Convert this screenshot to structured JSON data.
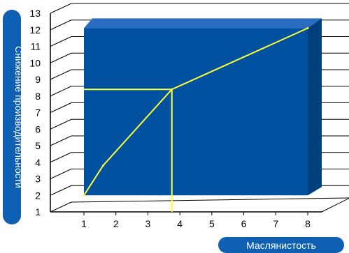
{
  "chart_data": {
    "type": "line",
    "xlabel": "Маслянистость",
    "ylabel": "Снижение производительности",
    "xlim": [
      1,
      8
    ],
    "ylim": [
      1,
      13
    ],
    "x_ticks": [
      "1",
      "2",
      "3",
      "4",
      "5",
      "6",
      "7",
      "8"
    ],
    "y_ticks": [
      "1",
      "2",
      "3",
      "4",
      "5",
      "6",
      "7",
      "8",
      "9",
      "10",
      "11",
      "12",
      "13"
    ],
    "series": [
      {
        "x": [
          1,
          1.6,
          3.75,
          8
        ],
        "y": [
          2,
          3.8,
          8.4,
          12.1
        ]
      }
    ],
    "reference": {
      "x": 3.75,
      "y": 8.4
    },
    "grid": true,
    "colors": {
      "panel": "#0052a0",
      "panel_top": "#2a6cc0",
      "panel_side": "#003f7e",
      "line": "#ffff33",
      "pill": "#0f5fb3"
    }
  }
}
